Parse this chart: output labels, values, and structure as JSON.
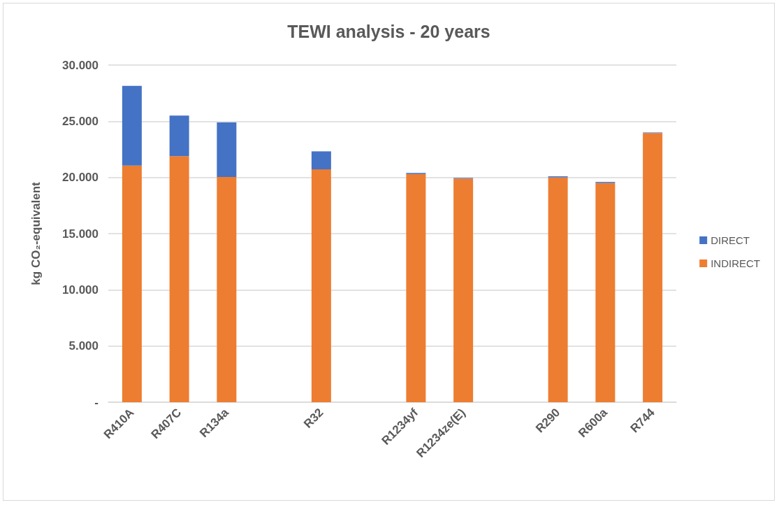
{
  "chart_data": {
    "type": "bar",
    "title": "TEWI analysis - 20 years",
    "ylabel": "kg CO₂-equivalent",
    "categories": [
      "R410A",
      "R407C",
      "R134a",
      null,
      "R32",
      null,
      "R1234yf",
      "R1234ze(E)",
      null,
      "R290",
      "R600a",
      "R744"
    ],
    "series": [
      {
        "name": "INDIRECT",
        "color": "#ed7d31",
        "values": [
          21050,
          21900,
          20040,
          null,
          20720,
          null,
          20300,
          19900,
          null,
          20000,
          19500,
          23950
        ]
      },
      {
        "name": "DIRECT",
        "color": "#4472c4",
        "values": [
          7100,
          3600,
          4850,
          null,
          1600,
          null,
          100,
          60,
          null,
          100,
          100,
          50
        ]
      }
    ],
    "stacked": true,
    "ylim": [
      0,
      30000
    ],
    "yticks": [
      {
        "value": 0,
        "label": "-"
      },
      {
        "value": 5000,
        "label": "5.000"
      },
      {
        "value": 10000,
        "label": "10.000"
      },
      {
        "value": 15000,
        "label": "15.000"
      },
      {
        "value": 20000,
        "label": "20.000"
      },
      {
        "value": 25000,
        "label": "25.000"
      },
      {
        "value": 30000,
        "label": "30.000"
      }
    ],
    "grid": "y",
    "legend": "right"
  }
}
